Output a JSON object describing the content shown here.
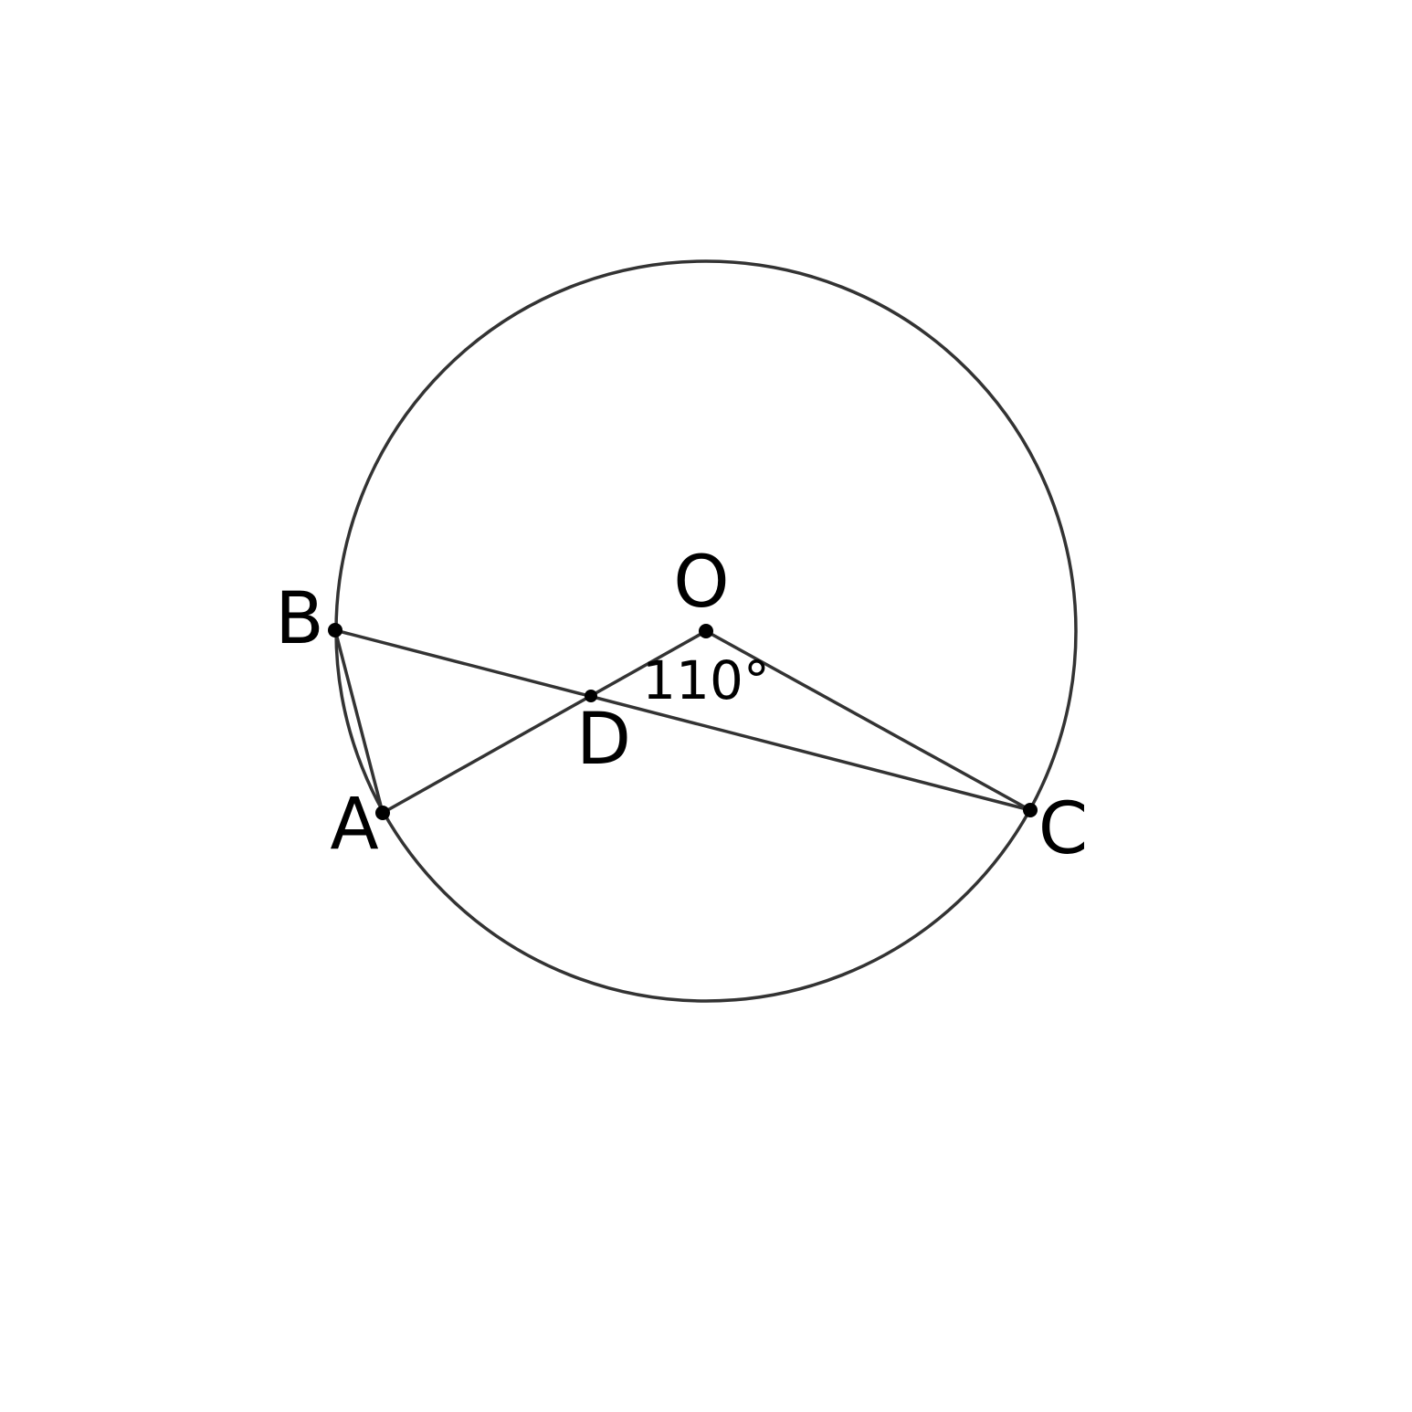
{
  "diagram": {
    "points": {
      "O": "O",
      "A": "A",
      "B": "B",
      "C": "C",
      "D": "D"
    },
    "angle_label": "110°",
    "colors": {
      "stroke": "#333333",
      "point": "#000000",
      "label": "#000000",
      "background": "#ffffff"
    }
  }
}
